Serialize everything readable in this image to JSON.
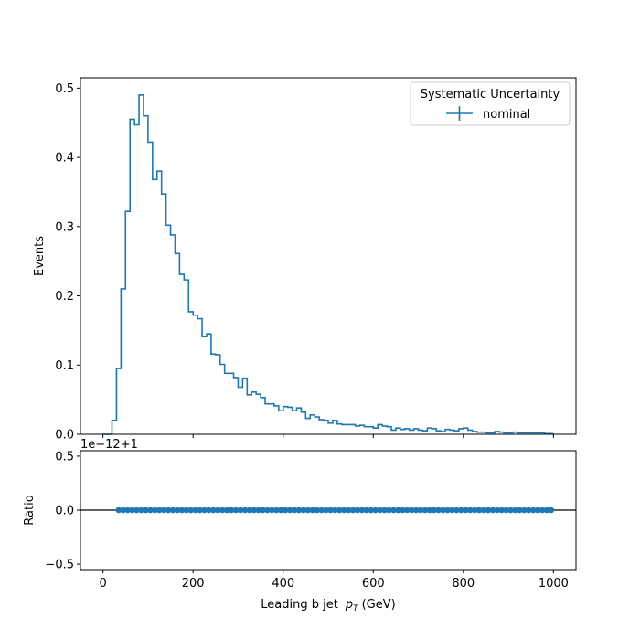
{
  "chart_data": [
    {
      "type": "line",
      "drawstyle": "steps",
      "ylabel": "Events",
      "xlim": [
        -50,
        1050
      ],
      "ylim": [
        0,
        0.515
      ],
      "xticks": [
        0,
        200,
        400,
        600,
        800,
        1000
      ],
      "yticks": [
        0.0,
        0.1,
        0.2,
        0.3,
        0.4,
        0.5
      ],
      "ytick_labels": [
        "0.0",
        "0.1",
        "0.2",
        "0.3",
        "0.4",
        "0.5"
      ],
      "grid": false,
      "legend": {
        "placement": "top-right",
        "title": "Systematic Uncertainty",
        "entries": [
          {
            "label": "nominal",
            "color": "#1f77b4"
          }
        ]
      },
      "series": [
        {
          "name": "nominal",
          "color": "#1f77b4",
          "bin_width": 10,
          "x_start": 0,
          "values": [
            0.0,
            0.0,
            0.02,
            0.095,
            0.21,
            0.322,
            0.455,
            0.447,
            0.49,
            0.46,
            0.422,
            0.368,
            0.38,
            0.347,
            0.302,
            0.288,
            0.261,
            0.231,
            0.223,
            0.177,
            0.172,
            0.167,
            0.141,
            0.145,
            0.116,
            0.115,
            0.101,
            0.088,
            0.088,
            0.082,
            0.068,
            0.081,
            0.057,
            0.061,
            0.058,
            0.053,
            0.044,
            0.044,
            0.041,
            0.034,
            0.04,
            0.039,
            0.034,
            0.038,
            0.032,
            0.023,
            0.028,
            0.025,
            0.021,
            0.02,
            0.016,
            0.02,
            0.015,
            0.014,
            0.014,
            0.014,
            0.012,
            0.013,
            0.011,
            0.011,
            0.009,
            0.014,
            0.012,
            0.011,
            0.006,
            0.009,
            0.007,
            0.008,
            0.006,
            0.008,
            0.006,
            0.005,
            0.009,
            0.008,
            0.005,
            0.004,
            0.007,
            0.006,
            0.005,
            0.008,
            0.009,
            0.006,
            0.004,
            0.003,
            0.003,
            0.002,
            0.002,
            0.004,
            0.003,
            0.002,
            0.002,
            0.003,
            0.002,
            0.002,
            0.002,
            0.002,
            0.002,
            0.002,
            0.001,
            0.001
          ]
        }
      ]
    },
    {
      "type": "scatter",
      "xlabel": "Leading b jet  p_T (GeV)",
      "xlabel_prefix": "Leading b jet",
      "xlabel_math_base": "p",
      "xlabel_math_sub": "T",
      "xlabel_unit": "(GeV)",
      "ylabel": "Ratio",
      "offset_text": "1e−12+1",
      "xlim": [
        -50,
        1050
      ],
      "ylim": [
        -0.55,
        0.55
      ],
      "xticks": [
        0,
        200,
        400,
        600,
        800,
        1000
      ],
      "xtick_labels": [
        "0",
        "200",
        "400",
        "600",
        "800",
        "1000"
      ],
      "yticks": [
        -0.5,
        0.0,
        0.5
      ],
      "ytick_labels": [
        "−0.5",
        "0.0",
        "0.5"
      ],
      "reference_line": 0.0,
      "grid": false,
      "series": [
        {
          "color": "#1f77b4",
          "x_start": 35,
          "x_step": 10,
          "count": 97,
          "value": 0.0
        }
      ]
    }
  ]
}
